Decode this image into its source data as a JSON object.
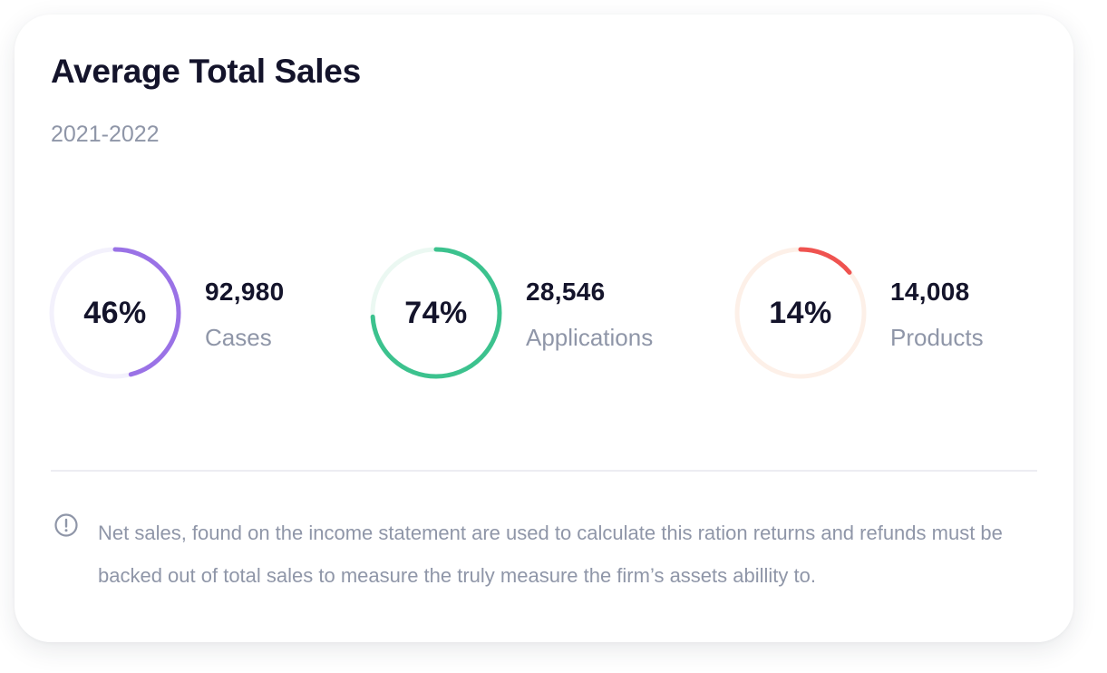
{
  "card": {
    "title": "Average Total Sales",
    "subtitle": "2021-2022"
  },
  "stats": [
    {
      "percent_text": "46%",
      "percent": 46,
      "value": "92,980",
      "label": "Cases",
      "color": "#9a72e6",
      "track_color": "#f3f1fc"
    },
    {
      "percent_text": "74%",
      "percent": 74,
      "value": "28,546",
      "label": "Applications",
      "color": "#3cc28e",
      "track_color": "#ebf8f2"
    },
    {
      "percent_text": "14%",
      "percent": 14,
      "value": "14,008",
      "label": "Products",
      "color": "#ef5350",
      "track_color": "#fdf0e8"
    }
  ],
  "note": {
    "icon": "info-circle-icon",
    "text": "Net sales, found on the income statement are used to calculate this ration returns and refunds must be backed out of total sales to measure the truly measure the firm’s assets abillity to."
  }
}
